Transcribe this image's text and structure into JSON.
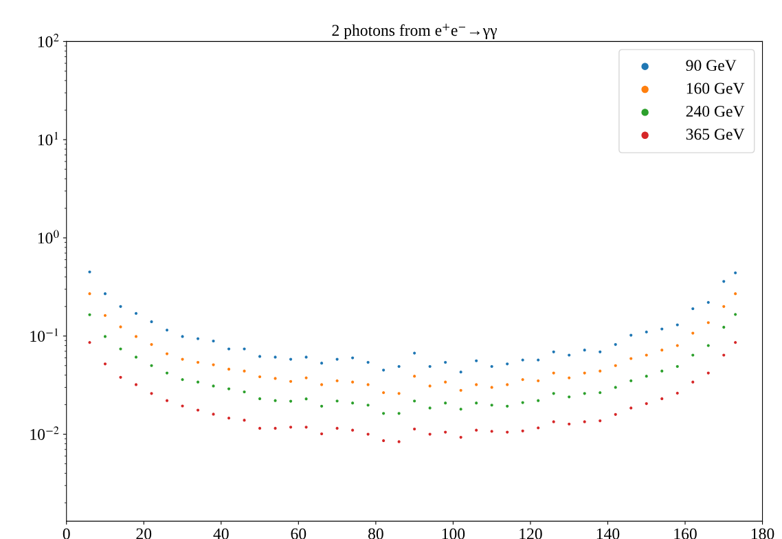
{
  "chart_data": {
    "type": "scatter",
    "title": "2 photons from e$^{+}$e$^{−}$→γγ",
    "x": [
      6,
      10,
      14,
      18,
      22,
      26,
      30,
      34,
      38,
      42,
      46,
      50,
      54,
      58,
      62,
      66,
      70,
      74,
      78,
      82,
      86,
      90,
      94,
      98,
      102,
      106,
      110,
      114,
      118,
      122,
      126,
      130,
      134,
      138,
      142,
      146,
      150,
      154,
      158,
      162,
      166,
      170,
      173
    ],
    "series": [
      {
        "name": "90 GeV",
        "color": "#1f77b4",
        "values": [
          0.45,
          0.27,
          0.2,
          0.17,
          0.14,
          0.115,
          0.099,
          0.094,
          0.089,
          0.074,
          0.074,
          0.062,
          0.061,
          0.058,
          0.061,
          0.053,
          0.058,
          0.06,
          0.054,
          0.045,
          0.049,
          0.067,
          0.049,
          0.054,
          0.043,
          0.056,
          0.049,
          0.052,
          0.057,
          0.057,
          0.069,
          0.064,
          0.072,
          0.069,
          0.082,
          0.102,
          0.11,
          0.118,
          0.13,
          0.19,
          0.22,
          0.36,
          0.44
        ]
      },
      {
        "name": "160 GeV",
        "color": "#ff7f0e",
        "values": [
          0.27,
          0.162,
          0.124,
          0.099,
          0.082,
          0.066,
          0.058,
          0.054,
          0.051,
          0.046,
          0.044,
          0.0385,
          0.037,
          0.0345,
          0.0375,
          0.032,
          0.035,
          0.034,
          0.032,
          0.0265,
          0.026,
          0.039,
          0.031,
          0.034,
          0.028,
          0.032,
          0.03,
          0.032,
          0.036,
          0.035,
          0.042,
          0.0375,
          0.042,
          0.044,
          0.05,
          0.059,
          0.064,
          0.072,
          0.08,
          0.107,
          0.137,
          0.2,
          0.27
        ]
      },
      {
        "name": "240 GeV",
        "color": "#2ca02c",
        "values": [
          0.165,
          0.099,
          0.074,
          0.061,
          0.05,
          0.042,
          0.036,
          0.034,
          0.031,
          0.029,
          0.027,
          0.023,
          0.022,
          0.0217,
          0.0229,
          0.0193,
          0.0218,
          0.0208,
          0.0198,
          0.0163,
          0.0163,
          0.0218,
          0.0185,
          0.0208,
          0.018,
          0.0208,
          0.0198,
          0.0193,
          0.021,
          0.022,
          0.026,
          0.024,
          0.026,
          0.0265,
          0.03,
          0.035,
          0.039,
          0.044,
          0.049,
          0.064,
          0.08,
          0.123,
          0.166
        ]
      },
      {
        "name": "365 GeV",
        "color": "#d62728",
        "values": [
          0.086,
          0.052,
          0.038,
          0.032,
          0.026,
          0.022,
          0.0194,
          0.0176,
          0.016,
          0.0146,
          0.0139,
          0.0115,
          0.0115,
          0.0118,
          0.0118,
          0.0101,
          0.0115,
          0.011,
          0.01,
          0.0086,
          0.0084,
          0.0113,
          0.01,
          0.0105,
          0.0093,
          0.011,
          0.0107,
          0.0105,
          0.0108,
          0.0116,
          0.0134,
          0.0127,
          0.0134,
          0.0137,
          0.0159,
          0.0185,
          0.0205,
          0.023,
          0.0262,
          0.034,
          0.042,
          0.064,
          0.086
        ]
      }
    ],
    "log": "y",
    "xlim": [
      0,
      180
    ],
    "xticks": [
      0,
      20,
      40,
      60,
      80,
      100,
      120,
      140,
      160,
      180
    ],
    "ylim": [
      0.0013,
      100
    ],
    "yticks": [
      {
        "value": 0.01,
        "label": "10$^{−2}$"
      },
      {
        "value": 0.1,
        "label": "10$^{−1}$"
      },
      {
        "value": 1,
        "label": "10$^{0}$"
      },
      {
        "value": 10,
        "label": "10$^{1}$"
      },
      {
        "value": 100,
        "label": "10$^{2}$"
      }
    ],
    "grid": false,
    "legend": "top right",
    "marker": "circle"
  }
}
